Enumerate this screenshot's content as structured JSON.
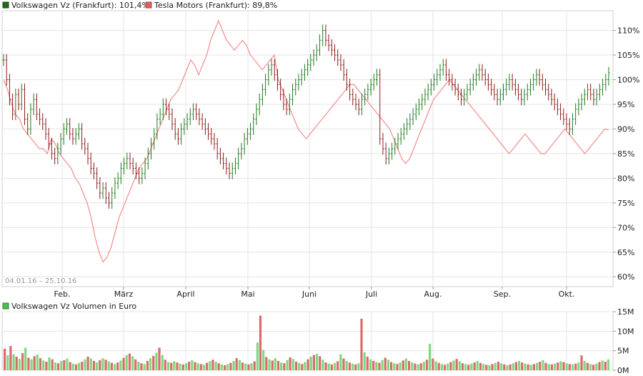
{
  "chart_data": [
    {
      "type": "line",
      "legend": [
        {
          "label": "Volkswagen Vz (Frankfurt): 101,4%",
          "color": "#2a8a2a",
          "swatch": "#1a6e1a"
        },
        {
          "label": "Tesla Motors (Frankfurt): 89,8%",
          "color": "#f08080",
          "swatch": "#e06060"
        }
      ],
      "date_range": "04.01.16 – 25.10.16",
      "x_tick_labels": [
        "Feb.",
        "März",
        "April",
        "Mai",
        "Juni",
        "Juli",
        "Aug.",
        "Sep.",
        "Okt."
      ],
      "y_tick_labels": [
        "110%",
        "105%",
        "100%",
        "95%",
        "90%",
        "85%",
        "80%",
        "75%",
        "70%",
        "65%",
        "60%"
      ],
      "ylim": [
        58,
        114
      ],
      "grid": true,
      "legend_placement": "top-left",
      "series": [
        {
          "name": "Volkswagen Vz (Frankfurt)",
          "style": "ohlc",
          "values": [
            104,
            100,
            96,
            93,
            97,
            95,
            98,
            92,
            90,
            94,
            96,
            93,
            92,
            91,
            89,
            87,
            85,
            84,
            86,
            88,
            90,
            91,
            89,
            88,
            89,
            90,
            87,
            86,
            84,
            82,
            81,
            79,
            77,
            78,
            76,
            75,
            77,
            79,
            80,
            82,
            83,
            84,
            83,
            82,
            81,
            80,
            81,
            83,
            85,
            87,
            89,
            92,
            93,
            95,
            94,
            93,
            91,
            89,
            88,
            90,
            91,
            92,
            93,
            94,
            93,
            92,
            91,
            90,
            89,
            88,
            87,
            85,
            84,
            83,
            82,
            81,
            82,
            83,
            85,
            86,
            88,
            89,
            90,
            92,
            94,
            96,
            98,
            100,
            102,
            103,
            101,
            99,
            97,
            95,
            94,
            96,
            98,
            99,
            100,
            101,
            102,
            103,
            104,
            105,
            106,
            108,
            110,
            108,
            107,
            106,
            105,
            104,
            103,
            101,
            99,
            97,
            96,
            95,
            94,
            96,
            97,
            98,
            99,
            100,
            101,
            88,
            86,
            84,
            85,
            86,
            87,
            88,
            89,
            90,
            91,
            92,
            93,
            94,
            95,
            96,
            97,
            98,
            99,
            100,
            101,
            102,
            103,
            101,
            100,
            99,
            98,
            97,
            96,
            97,
            98,
            99,
            100,
            101,
            102,
            101,
            100,
            99,
            98,
            97,
            96,
            97,
            98,
            99,
            100,
            99,
            98,
            97,
            96,
            97,
            98,
            99,
            100,
            101,
            100,
            99,
            98,
            97,
            96,
            95,
            94,
            93,
            92,
            91,
            90,
            92,
            94,
            95,
            96,
            97,
            98,
            97,
            96,
            97,
            98,
            99,
            100,
            101.4
          ]
        },
        {
          "name": "Tesla Motors (Frankfurt)",
          "style": "line",
          "values": [
            100,
            98,
            95,
            93,
            92,
            90,
            89,
            88,
            87,
            86,
            86,
            85,
            88,
            87,
            85,
            84,
            83,
            82,
            80,
            79,
            77,
            75,
            72,
            68,
            65,
            63,
            64,
            66,
            69,
            72,
            74,
            76,
            78,
            80,
            82,
            83,
            84,
            86,
            88,
            90,
            92,
            94,
            96,
            97,
            98,
            100,
            102,
            104,
            103,
            101,
            103,
            105,
            108,
            110,
            112,
            110,
            108,
            107,
            106,
            107,
            108,
            107,
            105,
            104,
            103,
            102,
            103,
            104,
            105,
            100,
            98,
            96,
            94,
            92,
            90,
            89,
            88,
            89,
            90,
            91,
            92,
            93,
            94,
            95,
            96,
            97,
            98,
            99,
            99,
            98,
            97,
            96,
            95,
            94,
            93,
            92,
            91,
            90,
            88,
            86,
            84,
            83,
            84,
            86,
            88,
            90,
            92,
            94,
            96,
            97,
            98,
            99,
            100,
            99,
            98,
            97,
            96,
            95,
            94,
            93,
            92,
            91,
            90,
            89,
            88,
            87,
            86,
            85,
            86,
            87,
            88,
            89,
            88,
            87,
            86,
            85,
            85,
            86,
            87,
            88,
            89,
            90,
            89,
            88,
            87,
            86,
            85,
            86,
            87,
            88,
            89,
            90,
            89.8
          ]
        }
      ]
    },
    {
      "type": "bar",
      "legend": [
        {
          "label": "Volkswagen Vz Volumen in Euro",
          "color": "#7fd97f",
          "swatch": "#4cbf4c"
        }
      ],
      "y_tick_labels": [
        "15M",
        "10M",
        "5M",
        "0M"
      ],
      "ylim": [
        0,
        15
      ],
      "grid": true,
      "series": [
        {
          "name": "Volkswagen Vz Volumen in Euro",
          "values": [
            5.5,
            3.8,
            6.2,
            4.1,
            3.5,
            2.9,
            4.4,
            5.8,
            3.2,
            2.8,
            3.6,
            4.0,
            3.1,
            2.5,
            2.2,
            3.3,
            2.8,
            2.0,
            1.8,
            2.4,
            2.6,
            3.0,
            2.1,
            1.7,
            1.5,
            1.9,
            2.2,
            2.8,
            3.5,
            3.0,
            2.4,
            2.0,
            2.6,
            3.1,
            2.7,
            2.3,
            1.9,
            1.6,
            2.0,
            2.5,
            3.2,
            3.9,
            4.3,
            3.6,
            2.8,
            2.2,
            1.8,
            1.6,
            2.4,
            3.1,
            3.7,
            4.5,
            5.8,
            3.9,
            2.7,
            2.1,
            1.9,
            2.3,
            2.0,
            1.7,
            1.5,
            1.8,
            2.2,
            2.6,
            2.1,
            1.8,
            1.6,
            1.4,
            1.9,
            2.3,
            2.7,
            2.2,
            1.8,
            1.5,
            1.3,
            1.6,
            1.9,
            2.4,
            3.1,
            2.6,
            2.0,
            1.7,
            1.5,
            1.8,
            2.3,
            7.1,
            14.0,
            5.2,
            3.4,
            2.8,
            2.5,
            3.1,
            2.4,
            2.0,
            1.8,
            2.6,
            3.3,
            2.9,
            2.2,
            1.9,
            1.6,
            2.1,
            2.8,
            3.5,
            3.9,
            4.2,
            3.6,
            2.7,
            2.0,
            1.7,
            1.5,
            1.9,
            2.3,
            4.1,
            3.0,
            2.4,
            2.0,
            1.7,
            1.5,
            1.8,
            13.2,
            4.6,
            3.5,
            2.8,
            2.4,
            2.1,
            1.9,
            2.6,
            3.2,
            2.7,
            2.1,
            1.8,
            1.6,
            2.0,
            2.5,
            3.0,
            2.4,
            2.0,
            1.7,
            1.5,
            1.8,
            2.2,
            2.7,
            6.8,
            3.0,
            2.3,
            1.9,
            1.6,
            1.4,
            1.7,
            2.1,
            2.5,
            2.9,
            2.3,
            1.8,
            1.6,
            1.4,
            1.7,
            2.0,
            2.4,
            1.9,
            1.6,
            1.4,
            1.3,
            1.6,
            1.9,
            2.2,
            1.8,
            1.5,
            1.3,
            1.5,
            1.8,
            2.1,
            2.4,
            2.0,
            1.7,
            1.5,
            1.4,
            1.6,
            1.9,
            2.2,
            2.6,
            1.9,
            1.6,
            1.5,
            1.7,
            2.0,
            2.3,
            2.1,
            1.8,
            1.6,
            1.5,
            1.7,
            2.0,
            3.8,
            2.4,
            1.9,
            1.6,
            1.4,
            1.7,
            2.1,
            2.5,
            2.2,
            2.8
          ]
        }
      ]
    }
  ]
}
